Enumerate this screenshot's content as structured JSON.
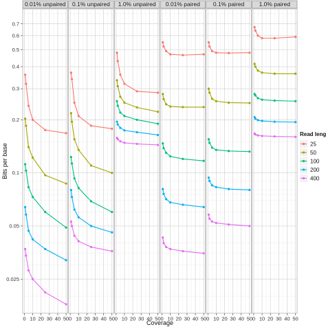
{
  "chart_data": {
    "type": "line",
    "xlabel": "Coverage",
    "ylabel": "Bits per base",
    "y_scale": "log",
    "ylim": [
      0.016,
      0.85
    ],
    "xlim": [
      -2,
      52
    ],
    "x_ticks": [
      0,
      10,
      20,
      30,
      40,
      50
    ],
    "y_ticks": [
      0.025,
      0.05,
      0.1,
      0.2,
      0.3,
      0.4,
      0.5,
      0.6,
      0.7
    ],
    "y_tick_labels": [
      "0.025",
      "0.05",
      "0.1",
      "0.2",
      "0.3",
      "0.4",
      "0.5",
      "0.6",
      "0.7"
    ],
    "grid": true,
    "legend": {
      "title": "Read length",
      "position": "right"
    },
    "coverage": [
      1,
      2,
      5,
      10,
      25,
      50
    ],
    "series_styles": [
      {
        "name": "25",
        "color": "#F8766D"
      },
      {
        "name": "50",
        "color": "#A3A500"
      },
      {
        "name": "100",
        "color": "#00BF7D"
      },
      {
        "name": "200",
        "color": "#00B0F6"
      },
      {
        "name": "400",
        "color": "#E76BF3"
      }
    ],
    "panels": [
      {
        "label": "0.01% unpaired",
        "series": [
          {
            "name": "25",
            "values": [
              0.36,
              0.32,
              0.24,
              0.2,
              0.175,
              0.168
            ]
          },
          {
            "name": "50",
            "values": [
              0.203,
              0.185,
              0.14,
              0.122,
              0.097,
              0.087
            ]
          },
          {
            "name": "100",
            "values": [
              0.112,
              0.103,
              0.083,
              0.073,
              0.06,
              0.049
            ]
          },
          {
            "name": "200",
            "values": [
              0.064,
              0.058,
              0.047,
              0.042,
              0.037,
              0.032
            ]
          },
          {
            "name": "400",
            "values": [
              0.037,
              0.034,
              0.028,
              0.025,
              0.021,
              0.018
            ]
          }
        ]
      },
      {
        "label": "0.1% unpaired",
        "series": [
          {
            "name": "25",
            "values": [
              0.37,
              0.34,
              0.25,
              0.21,
              0.185,
              0.178
            ]
          },
          {
            "name": "50",
            "values": [
              0.218,
              0.195,
              0.155,
              0.135,
              0.11,
              0.1
            ]
          },
          {
            "name": "100",
            "values": [
              0.123,
              0.113,
              0.093,
              0.082,
              0.069,
              0.06
            ]
          },
          {
            "name": "200",
            "values": [
              0.08,
              0.073,
              0.062,
              0.056,
              0.05,
              0.046
            ]
          },
          {
            "name": "400",
            "values": [
              0.053,
              0.05,
              0.044,
              0.041,
              0.038,
              0.036
            ]
          }
        ]
      },
      {
        "label": "1.0% unpaired",
        "series": [
          {
            "name": "25",
            "values": [
              0.48,
              0.43,
              0.36,
              0.32,
              0.29,
              0.285
            ]
          },
          {
            "name": "50",
            "values": [
              0.335,
              0.31,
              0.27,
              0.25,
              0.235,
              0.222
            ]
          },
          {
            "name": "100",
            "values": [
              0.255,
              0.24,
              0.22,
              0.21,
              0.2,
              0.19
            ]
          },
          {
            "name": "200",
            "values": [
              0.195,
              0.188,
              0.18,
              0.174,
              0.17,
              0.164
            ]
          },
          {
            "name": "400",
            "values": [
              0.158,
              0.155,
              0.151,
              0.148,
              0.146,
              0.144
            ]
          }
        ]
      },
      {
        "label": "0.01% paired",
        "series": [
          {
            "name": "25",
            "values": [
              0.55,
              0.52,
              0.49,
              0.47,
              0.465,
              0.47
            ]
          },
          {
            "name": "50",
            "values": [
              0.28,
              0.262,
              0.245,
              0.238,
              0.236,
              0.236
            ]
          },
          {
            "name": "100",
            "values": [
              0.147,
              0.138,
              0.13,
              0.124,
              0.12,
              0.117
            ]
          },
          {
            "name": "200",
            "values": [
              0.081,
              0.076,
              0.071,
              0.068,
              0.066,
              0.064
            ]
          },
          {
            "name": "400",
            "values": [
              0.043,
              0.04,
              0.038,
              0.037,
              0.036,
              0.035
            ]
          }
        ]
      },
      {
        "label": "0.1% paired",
        "series": [
          {
            "name": "25",
            "values": [
              0.55,
              0.52,
              0.49,
              0.48,
              0.478,
              0.48
            ]
          },
          {
            "name": "50",
            "values": [
              0.3,
              0.285,
              0.263,
              0.255,
              0.25,
              0.249
            ]
          },
          {
            "name": "100",
            "values": [
              0.155,
              0.148,
              0.139,
              0.135,
              0.133,
              0.132
            ]
          },
          {
            "name": "200",
            "values": [
              0.094,
              0.09,
              0.085,
              0.083,
              0.081,
              0.08
            ]
          },
          {
            "name": "400",
            "values": [
              0.058,
              0.055,
              0.053,
              0.052,
              0.051,
              0.05
            ]
          }
        ]
      },
      {
        "label": "1.0% paired",
        "series": [
          {
            "name": "25",
            "values": [
              0.67,
              0.64,
              0.6,
              0.58,
              0.58,
              0.59
            ]
          },
          {
            "name": "50",
            "values": [
              0.415,
              0.4,
              0.38,
              0.37,
              0.365,
              0.365
            ]
          },
          {
            "name": "100",
            "values": [
              0.28,
              0.275,
              0.265,
              0.26,
              0.257,
              0.255
            ]
          },
          {
            "name": "200",
            "values": [
              0.207,
              0.203,
              0.199,
              0.197,
              0.195,
              0.194
            ]
          },
          {
            "name": "400",
            "values": [
              0.167,
              0.165,
              0.163,
              0.162,
              0.161,
              0.16
            ]
          }
        ]
      }
    ]
  }
}
